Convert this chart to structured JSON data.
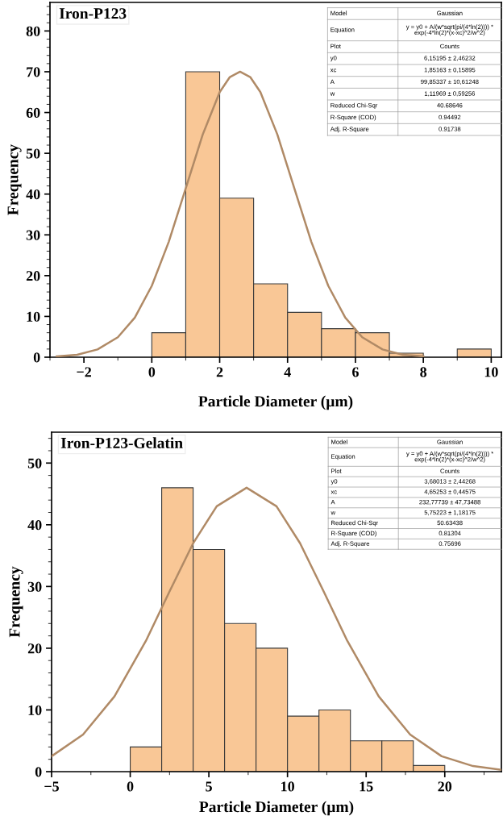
{
  "chart_data": [
    {
      "type": "histogram",
      "title": "Iron-P123",
      "xlabel": "Particle Diameter (µm)",
      "ylabel": "Frequency",
      "bins": [
        0,
        1,
        2,
        3,
        4,
        5,
        6,
        7,
        8,
        9,
        10
      ],
      "series": [
        {
          "color": "#f9c796",
          "values": [
            6,
            70,
            39,
            18,
            11,
            7,
            6,
            1,
            0,
            2
          ]
        },
        {
          "type": "line",
          "color": "#b08a66",
          "x": [
            -2.8,
            -2.2,
            -1.6,
            -1.0,
            -0.5,
            0,
            0.5,
            1.0,
            1.5,
            2.0,
            2.3,
            2.6,
            2.9,
            3.2,
            3.7,
            4.2,
            4.7,
            5.2,
            5.7,
            6.2,
            6.8,
            7.4,
            8.0
          ],
          "values": [
            0.2,
            0.6,
            1.9,
            4.9,
            9.7,
            17.5,
            28.3,
            41.4,
            54.6,
            65.0,
            68.7,
            70,
            68.7,
            65.0,
            54.6,
            41.4,
            28.3,
            17.5,
            9.7,
            4.9,
            1.9,
            0.6,
            0.2
          ]
        }
      ],
      "xlim": [
        -3,
        10.3
      ],
      "ylim": [
        0,
        87
      ],
      "xticks": [
        {
          "value": -2,
          "label": "−2"
        },
        0,
        2,
        4,
        6,
        8,
        10
      ],
      "yticks": [
        0,
        10,
        20,
        30,
        40,
        50,
        60,
        70,
        80
      ],
      "annotations": [
        "Model",
        "Gaussian",
        "Equation",
        "y = y0 + A/(w*sqrt(pi/(4*ln(2)))) *\nexp(-4*ln(2)*(x-xc)^2/w^2)",
        "Plot",
        "Counts",
        "y0",
        "6,15195 ± 2,46232",
        "xc",
        "1,85163 ± 0,15895",
        "A",
        "99,85337 ± 10,61248",
        "w",
        "1,11969 ± 0,59256",
        "Reduced Chi-Sqr",
        "40.68646",
        "R-Square (COD)",
        "0.94492",
        "Adj. R-Square",
        "0.91738"
      ]
    },
    {
      "type": "histogram",
      "title": "Iron-P123-Gelatin",
      "xlabel": "Particle Diameter (µm)",
      "ylabel": "Frequency",
      "bins": [
        0,
        2,
        4,
        6,
        8,
        10,
        12,
        14,
        16,
        18,
        20
      ],
      "series": [
        {
          "color": "#f9c796",
          "values": [
            4,
            46,
            36,
            24,
            20,
            9,
            10,
            5,
            5,
            1
          ]
        },
        {
          "type": "line",
          "color": "#b08a66",
          "x": [
            -5,
            -3,
            -1,
            1,
            2.5,
            4,
            5.5,
            7.4,
            9.3,
            10.8,
            12.3,
            13.8,
            15.8,
            17.8,
            19.8,
            21.8,
            23.6
          ],
          "values": [
            2.5,
            6.0,
            12.2,
            21.2,
            29.2,
            37.0,
            43.0,
            46,
            43.0,
            37.0,
            29.2,
            21.2,
            12.2,
            6.0,
            2.5,
            0.9,
            0.3
          ]
        }
      ],
      "xlim": [
        -5,
        23.6
      ],
      "ylim": [
        0,
        55
      ],
      "xticks": [
        {
          "value": -5,
          "label": "−5"
        },
        0,
        5,
        10,
        15,
        20
      ],
      "yticks": [
        0,
        10,
        20,
        30,
        40,
        50
      ],
      "annotations": [
        "Model",
        "Gaussian",
        "Equation",
        "y = y0 + A/(w*sqrt(pi/(4*ln(2)))) *\nexp(-4*ln(2)*(x-xc)^2/w^2)",
        "Plot",
        "Counts",
        "y0",
        "3,68013 ± 2,44268",
        "xc",
        "4,65253 ± 0,44575",
        "A",
        "232,77739 ± 47,73488",
        "w",
        "5,75223 ± 1,18175",
        "Reduced Chi-Sqr",
        "50.63438",
        "R-Square (COD)",
        "0.81304",
        "Adj. R-Square",
        "0.75696"
      ]
    }
  ]
}
